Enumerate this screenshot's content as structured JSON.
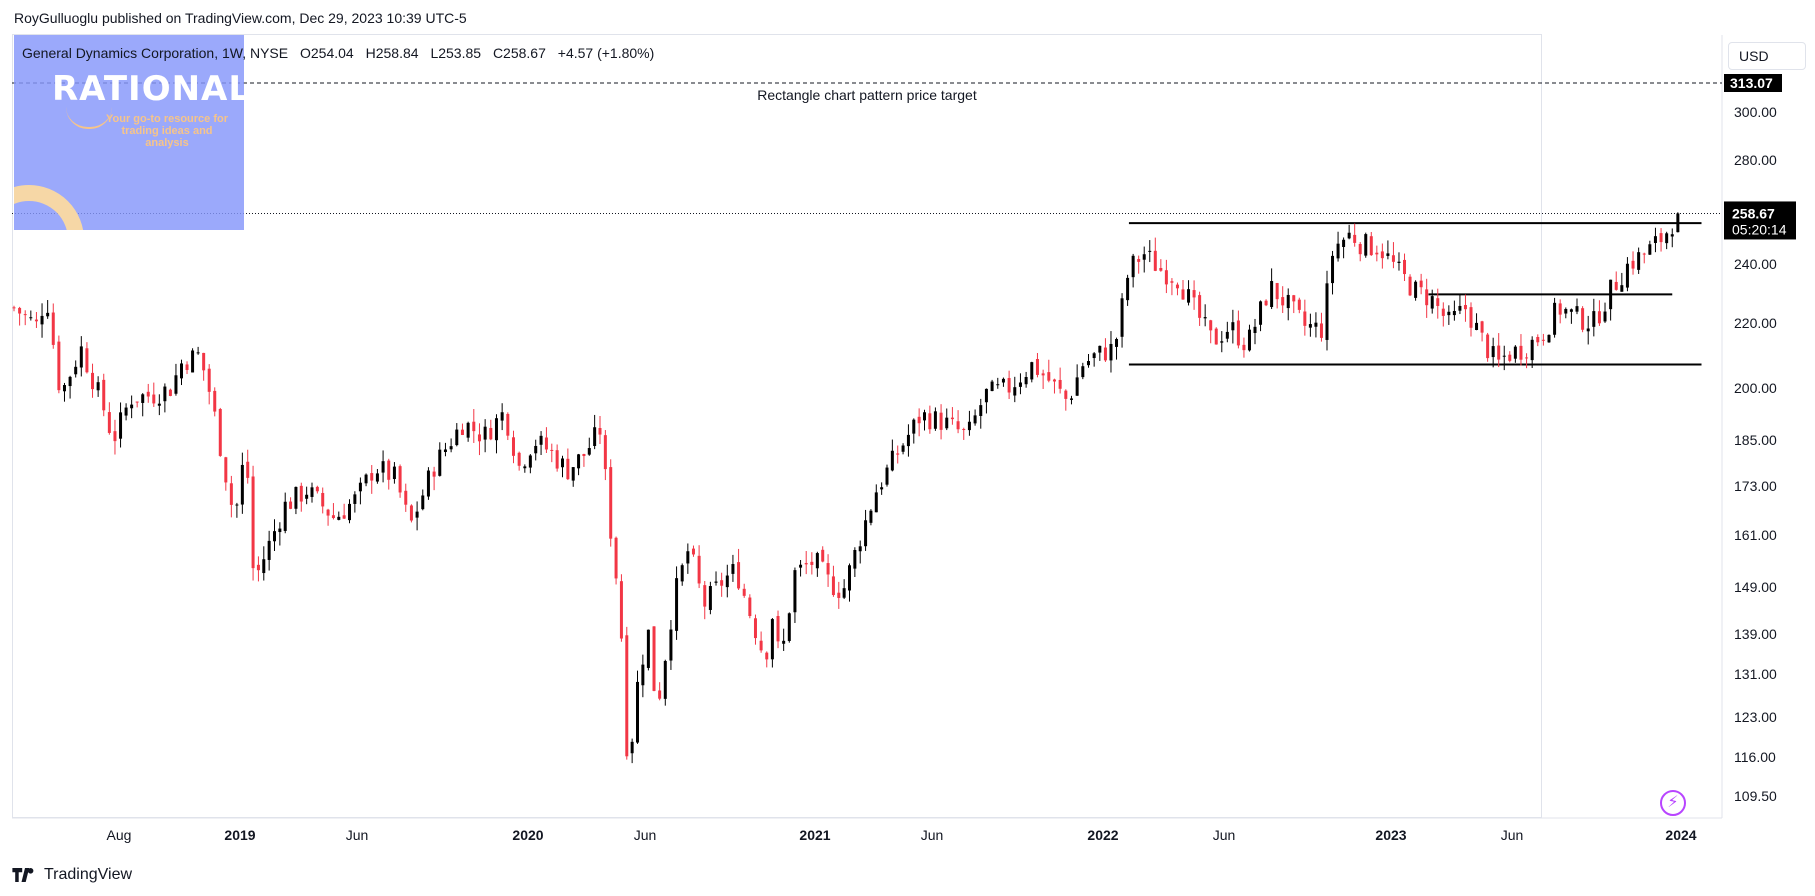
{
  "header": {
    "published": "RoyGulluoglu published on TradingView.com, Dec 29, 2023 10:39 UTC-5"
  },
  "symbol": {
    "name": "General Dynamics Corporation, 1W, NYSE",
    "open": "O254.04",
    "high": "H258.84",
    "low": "L253.85",
    "close": "C258.67",
    "change": "+4.57 (+1.80%)"
  },
  "watermark": {
    "title": "RATIONALE",
    "tagline": "Your go-to resource for trading ideas and analysis"
  },
  "toolbar": {
    "currency": "USD"
  },
  "footer": {
    "brand": "TradingView"
  },
  "colors": {
    "up": "#000000",
    "down": "#f23645",
    "axis": "#131722",
    "price_label_bg": "#000000"
  },
  "chart_data": {
    "type": "candlestick",
    "scale": "log",
    "timeframe": "1W",
    "ylim": [
      105,
      330
    ],
    "y_ticks": [
      109.5,
      116,
      123,
      131,
      139,
      149,
      161,
      173,
      185,
      200,
      220,
      240,
      280,
      300
    ],
    "y_tick_labels": [
      "109.50",
      "116.00",
      "123.00",
      "131.00",
      "139.00",
      "149.00",
      "161.00",
      "173.00",
      "185.00",
      "200.00",
      "220.00",
      "240.00",
      "280.00",
      "300.00"
    ],
    "x_ticks": [
      {
        "label": "Aug",
        "t": 2018.58,
        "bold": false
      },
      {
        "label": "2019",
        "t": 2019.0,
        "bold": true
      },
      {
        "label": "Jun",
        "t": 2019.42,
        "bold": false
      },
      {
        "label": "2020",
        "t": 2020.0,
        "bold": true
      },
      {
        "label": "Jun",
        "t": 2020.42,
        "bold": false
      },
      {
        "label": "2021",
        "t": 2021.0,
        "bold": true
      },
      {
        "label": "Jun",
        "t": 2021.42,
        "bold": false
      },
      {
        "label": "2022",
        "t": 2022.0,
        "bold": true
      },
      {
        "label": "Jun",
        "t": 2022.42,
        "bold": false
      },
      {
        "label": "2023",
        "t": 2023.0,
        "bold": true
      },
      {
        "label": "Jun",
        "t": 2023.42,
        "bold": false
      },
      {
        "label": "2024",
        "t": 2024.0,
        "bold": true
      }
    ],
    "xlim": [
      2018.22,
      2024.18
    ],
    "last_price": {
      "value": 258.67,
      "label": "258.67",
      "countdown": "05:20:14"
    },
    "target": {
      "value": 313.07,
      "label": "313.07",
      "annotation": "Rectangle chart pattern price target"
    },
    "lines": [
      {
        "price": 255,
        "t0": 2022.09,
        "t1": 2024.09
      },
      {
        "price": 207,
        "t0": 2022.09,
        "t1": 2024.09
      },
      {
        "price": 229.5,
        "t0": 2023.13,
        "t1": 2023.97
      }
    ],
    "anchors": [
      [
        2018.22,
        225
      ],
      [
        2018.3,
        219
      ],
      [
        2018.33,
        230
      ],
      [
        2018.38,
        198
      ],
      [
        2018.45,
        212
      ],
      [
        2018.52,
        196
      ],
      [
        2018.56,
        185
      ],
      [
        2018.62,
        197
      ],
      [
        2018.7,
        198
      ],
      [
        2018.76,
        200
      ],
      [
        2018.8,
        208
      ],
      [
        2018.86,
        210
      ],
      [
        2018.9,
        197
      ],
      [
        2018.94,
        180
      ],
      [
        2018.98,
        165
      ],
      [
        2019.0,
        172
      ],
      [
        2019.02,
        185
      ],
      [
        2019.05,
        150
      ],
      [
        2019.1,
        158
      ],
      [
        2019.16,
        168
      ],
      [
        2019.24,
        172
      ],
      [
        2019.34,
        165
      ],
      [
        2019.42,
        170
      ],
      [
        2019.48,
        178
      ],
      [
        2019.55,
        175
      ],
      [
        2019.6,
        163
      ],
      [
        2019.68,
        178
      ],
      [
        2019.78,
        190
      ],
      [
        2019.85,
        186
      ],
      [
        2019.92,
        193
      ],
      [
        2019.97,
        178
      ],
      [
        2020.02,
        185
      ],
      [
        2020.08,
        182
      ],
      [
        2020.14,
        177
      ],
      [
        2020.2,
        181
      ],
      [
        2020.26,
        188
      ],
      [
        2020.3,
        160
      ],
      [
        2020.33,
        145
      ],
      [
        2020.36,
        113
      ],
      [
        2020.39,
        128
      ],
      [
        2020.43,
        140
      ],
      [
        2020.46,
        124
      ],
      [
        2020.52,
        147
      ],
      [
        2020.57,
        158
      ],
      [
        2020.62,
        145
      ],
      [
        2020.68,
        150
      ],
      [
        2020.73,
        153
      ],
      [
        2020.78,
        143
      ],
      [
        2020.83,
        134
      ],
      [
        2020.86,
        145
      ],
      [
        2020.88,
        132
      ],
      [
        2020.93,
        152
      ],
      [
        2021.0,
        155
      ],
      [
        2021.05,
        150
      ],
      [
        2021.1,
        148
      ],
      [
        2021.16,
        160
      ],
      [
        2021.22,
        172
      ],
      [
        2021.3,
        182
      ],
      [
        2021.38,
        192
      ],
      [
        2021.46,
        190
      ],
      [
        2021.54,
        186
      ],
      [
        2021.6,
        198
      ],
      [
        2021.68,
        200
      ],
      [
        2021.76,
        207
      ],
      [
        2021.82,
        202
      ],
      [
        2021.88,
        196
      ],
      [
        2021.93,
        207
      ],
      [
        2021.98,
        210
      ],
      [
        2022.04,
        212
      ],
      [
        2022.09,
        238
      ],
      [
        2022.14,
        244
      ],
      [
        2022.2,
        238
      ],
      [
        2022.26,
        235
      ],
      [
        2022.32,
        224
      ],
      [
        2022.38,
        214
      ],
      [
        2022.44,
        219
      ],
      [
        2022.5,
        213
      ],
      [
        2022.58,
        232
      ],
      [
        2022.64,
        226
      ],
      [
        2022.7,
        219
      ],
      [
        2022.76,
        218
      ],
      [
        2022.8,
        246
      ],
      [
        2022.86,
        251
      ],
      [
        2022.9,
        247
      ],
      [
        2022.96,
        246
      ],
      [
        2023.02,
        238
      ],
      [
        2023.08,
        231
      ],
      [
        2023.14,
        228
      ],
      [
        2023.2,
        220
      ],
      [
        2023.26,
        225
      ],
      [
        2023.32,
        214
      ],
      [
        2023.37,
        207
      ],
      [
        2023.4,
        210
      ],
      [
        2023.46,
        212
      ],
      [
        2023.52,
        216
      ],
      [
        2023.58,
        225
      ],
      [
        2023.64,
        222
      ],
      [
        2023.7,
        220
      ],
      [
        2023.76,
        231
      ],
      [
        2023.82,
        240
      ],
      [
        2023.88,
        244
      ],
      [
        2023.94,
        250
      ],
      [
        2023.99,
        258.67
      ]
    ]
  }
}
